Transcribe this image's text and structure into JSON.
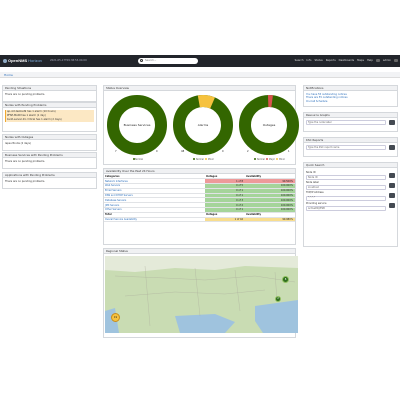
{
  "topbar": {
    "brand": "OpenNMS",
    "brand_sub": "Horizon",
    "timestamp": "2021-05-17T09:38:53-04:00",
    "search_placeholder": "Search...",
    "nav": [
      "Search",
      "Info",
      "Status",
      "Reports",
      "Dashboards",
      "Maps",
      "Help",
      "admin"
    ]
  },
  "breadcrumb": "Home",
  "left": {
    "pending_situations": {
      "title": "Pending Situations",
      "text": "There are no pending problems."
    },
    "nodes_pending": {
      "title": "Nodes with Pending Problems",
      "rows": [
        "ap-old-testnet9 has 1 alarm (10 hours)",
        "PFSE-MAIN has 1 alarm (1 day)",
        "build-server-01 critical has 1 alarm (2 days)"
      ]
    },
    "nodes_outages": {
      "title": "Nodes with Outages",
      "text": "lepsurfnode (2 days)"
    },
    "business": {
      "title": "Business Services with Pending Problems",
      "text": "There are no pending problems."
    },
    "applications": {
      "title": "Applications with Pending Problems",
      "text": "There are no pending problems."
    }
  },
  "status": {
    "title": "Status Overview",
    "donuts": [
      {
        "label": "Business Services",
        "count": "7",
        "count_minor": "0",
        "legend": [
          "Normal"
        ]
      },
      {
        "label": "Alarms",
        "count": "48",
        "count_minor": "0",
        "legend": [
          "Normal",
          "Minor"
        ]
      },
      {
        "label": "Outages",
        "count": "2",
        "count_minor": "1",
        "legend": [
          "Normal",
          "Major",
          "Minor"
        ]
      }
    ]
  },
  "availability": {
    "title": "Availability Over the Past 24 Hours",
    "headers": [
      "Categories",
      "Outages",
      "Availability"
    ],
    "rows": [
      {
        "c": "Network Interfaces",
        "o": "1 of 8",
        "a": "99.500%"
      },
      {
        "c": "Web Servers",
        "o": "0 of 5",
        "a": "100.000%"
      },
      {
        "c": "Email Servers",
        "o": "0 of 1",
        "a": "100.000%"
      },
      {
        "c": "DNS and DHCP Servers",
        "o": "0 of 1",
        "a": "100.000%"
      },
      {
        "c": "Database Servers",
        "o": "0 of 3",
        "a": "100.000%"
      },
      {
        "c": "JMX Servers",
        "o": "0 of 2",
        "a": "100.000%"
      },
      {
        "c": "Other Servers",
        "o": "0 of 1",
        "a": "100.000%"
      }
    ],
    "total_header": [
      "Total",
      "Outages",
      "Availability"
    ],
    "total_row": {
      "c": "Overall Service Availability",
      "o": "1 of 42",
      "a": "99.980%"
    }
  },
  "regional": {
    "title": "Regional Status",
    "markers": [
      "8",
      "2",
      "19"
    ]
  },
  "right": {
    "notifications": {
      "title": "Notifications",
      "rows": [
        "You have 55 outstanding notices",
        "There are 55 outstanding notices",
        "On-Call Schedule"
      ]
    },
    "resource_graphs": {
      "title": "Resource Graphs",
      "placeholder": "Type the node label"
    },
    "kcs_reports": {
      "title": "KSC Reports",
      "placeholder": "Type the KSC report name"
    },
    "quick_search": {
      "title": "Quick Search",
      "fields": [
        {
          "label": "Node ID",
          "value": "Node ID"
        },
        {
          "label": "Node label",
          "value": "localhost"
        },
        {
          "label": "TCP/IP Address",
          "value": "*.*.*.*"
        },
        {
          "label": "Providing service",
          "value": "ActiveMQ/ESB"
        }
      ]
    }
  },
  "colors": {
    "normal": "#336600",
    "minor": "#f6c23e",
    "major": "#d9534f",
    "warn": "#fce8c4"
  }
}
